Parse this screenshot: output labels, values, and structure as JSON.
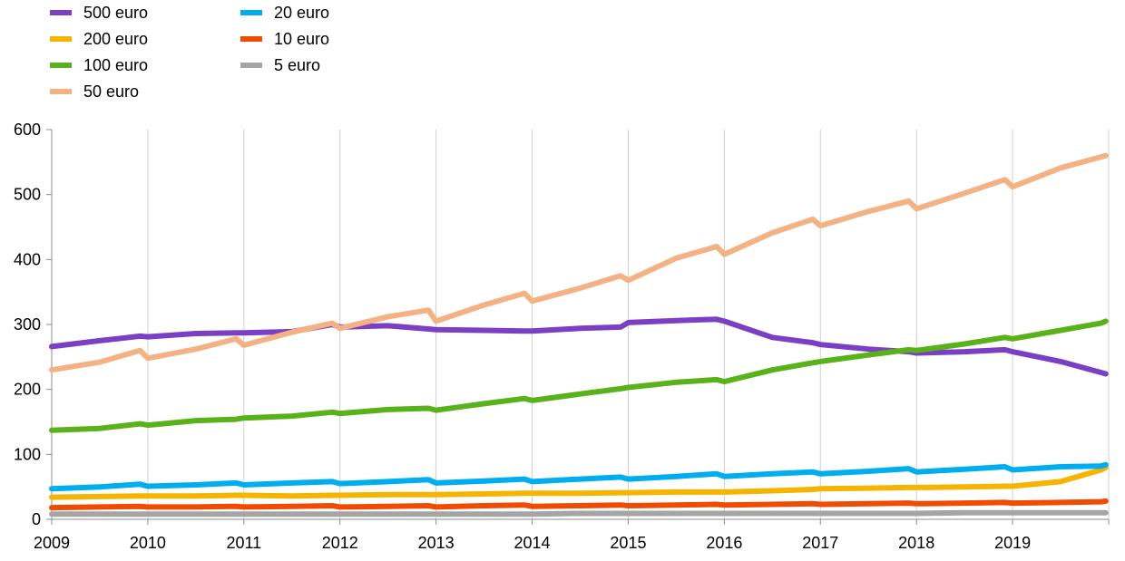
{
  "chart_data": {
    "type": "line",
    "title": "",
    "xlabel": "",
    "ylabel": "",
    "ylim": [
      0,
      600
    ],
    "yticks": [
      "0",
      "100",
      "200",
      "300",
      "400",
      "500",
      "600"
    ],
    "xlim": [
      2009,
      2020
    ],
    "xticks": [
      "2009",
      "2010",
      "2011",
      "2012",
      "2013",
      "2014",
      "2015",
      "2016",
      "2017",
      "2018",
      "2019"
    ],
    "grid": "vertical lines at year starts",
    "legend": "top-left, two columns",
    "x": [
      2009.0,
      2009.5,
      2009.92,
      2010.0,
      2010.5,
      2010.92,
      2011.0,
      2011.5,
      2011.92,
      2012.0,
      2012.5,
      2012.92,
      2013.0,
      2013.5,
      2013.92,
      2014.0,
      2014.5,
      2014.92,
      2015.0,
      2015.5,
      2015.92,
      2016.0,
      2016.5,
      2016.92,
      2017.0,
      2017.5,
      2017.92,
      2018.0,
      2018.5,
      2018.92,
      2019.0,
      2019.5,
      2019.92,
      2019.97
    ],
    "series": [
      {
        "name": "500 euro",
        "color": "#7b3fc4",
        "values": [
          266,
          275,
          282,
          281,
          286,
          287,
          287,
          289,
          300,
          296,
          298,
          293,
          292,
          291,
          290,
          290,
          294,
          296,
          303,
          306,
          308,
          305,
          280,
          272,
          269,
          262,
          258,
          256,
          258,
          261,
          258,
          243,
          226,
          224
        ]
      },
      {
        "name": "200 euro",
        "color": "#f5b400",
        "values": [
          34,
          35,
          36,
          36,
          36,
          37,
          37,
          36,
          37,
          37,
          38,
          38,
          38,
          39,
          40,
          40,
          40,
          41,
          41,
          42,
          42,
          42,
          44,
          46,
          47,
          48,
          49,
          49,
          50,
          51,
          51,
          58,
          76,
          80
        ]
      },
      {
        "name": "100 euro",
        "color": "#5ab21b",
        "values": [
          137,
          140,
          147,
          145,
          152,
          154,
          156,
          159,
          165,
          163,
          169,
          171,
          168,
          178,
          186,
          183,
          193,
          201,
          203,
          211,
          215,
          212,
          230,
          241,
          243,
          253,
          261,
          260,
          270,
          280,
          278,
          291,
          302,
          305
        ]
      },
      {
        "name": "50 euro",
        "color": "#f4b183",
        "values": [
          230,
          242,
          260,
          248,
          262,
          278,
          268,
          288,
          302,
          294,
          312,
          322,
          305,
          330,
          348,
          336,
          356,
          375,
          368,
          402,
          420,
          408,
          441,
          462,
          452,
          474,
          490,
          478,
          502,
          523,
          512,
          541,
          558,
          560
        ]
      },
      {
        "name": "20 euro",
        "color": "#00aeef",
        "values": [
          47,
          50,
          54,
          51,
          53,
          56,
          53,
          56,
          58,
          55,
          58,
          61,
          56,
          59,
          62,
          58,
          62,
          65,
          62,
          66,
          70,
          66,
          70,
          73,
          70,
          74,
          78,
          73,
          77,
          81,
          76,
          81,
          82,
          84
        ]
      },
      {
        "name": "10 euro",
        "color": "#f04b00",
        "values": [
          18,
          19,
          20,
          19,
          19,
          20,
          19,
          20,
          21,
          19,
          20,
          21,
          19,
          21,
          22,
          20,
          21,
          22,
          21,
          22,
          23,
          22,
          23,
          24,
          23,
          24,
          25,
          24,
          25,
          26,
          25,
          26,
          27,
          28
        ]
      },
      {
        "name": "5 euro",
        "color": "#a5a5a5",
        "values": [
          8,
          8,
          8,
          8,
          8,
          8,
          8,
          8,
          8,
          8,
          8,
          8,
          8,
          8,
          8,
          8,
          9,
          9,
          9,
          9,
          9,
          9,
          9,
          9,
          9,
          9,
          9,
          9,
          10,
          10,
          10,
          10,
          10,
          10
        ]
      }
    ]
  }
}
